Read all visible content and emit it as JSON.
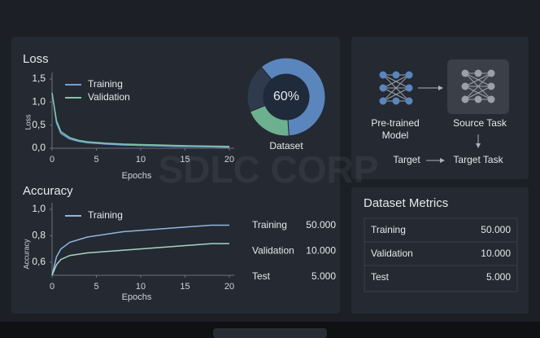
{
  "chart_data": [
    {
      "type": "line",
      "title": "Loss",
      "y_label": "Loss",
      "x_label": "Epochs",
      "x": [
        0,
        0.5,
        1,
        2,
        3,
        4,
        6,
        8,
        10,
        12,
        14,
        16,
        18,
        20
      ],
      "xlim": [
        0,
        20
      ],
      "xticks": [
        0,
        5,
        10,
        15,
        20
      ],
      "ylim": [
        0,
        1.5
      ],
      "yticks": [
        {
          "value": 1.5,
          "label": "1,5"
        },
        {
          "value": 1.0,
          "label": "1,0"
        },
        {
          "value": 0.5,
          "label": "0,5"
        },
        {
          "value": 0,
          "label": "0,0"
        }
      ],
      "series": [
        {
          "name": "Training",
          "color": "#6f9fd8",
          "values": [
            1.2,
            0.55,
            0.32,
            0.2,
            0.15,
            0.12,
            0.09,
            0.07,
            0.06,
            0.05,
            0.04,
            0.035,
            0.03,
            0.02
          ]
        },
        {
          "name": "Validation",
          "color": "#7fc4a8",
          "values": [
            1.2,
            0.6,
            0.36,
            0.23,
            0.17,
            0.14,
            0.11,
            0.09,
            0.08,
            0.07,
            0.06,
            0.05,
            0.045,
            0.04
          ]
        }
      ]
    },
    {
      "type": "line",
      "title": "Accuracy",
      "y_label": "Accuracy",
      "x_label": "Epochs",
      "x": [
        0,
        0.5,
        1,
        2,
        3,
        4,
        6,
        8,
        10,
        12,
        14,
        16,
        18,
        20
      ],
      "xlim": [
        0,
        20
      ],
      "xticks": [
        0,
        5,
        10,
        15,
        20
      ],
      "ylim": [
        0.5,
        1.0
      ],
      "yticks": [
        {
          "value": 1.0,
          "label": "1,0"
        },
        {
          "value": 0.8,
          "label": "0,8"
        },
        {
          "value": 0.6,
          "label": "0,6"
        }
      ],
      "series": [
        {
          "name": "Training",
          "color": "#8fb6e0",
          "values": [
            0.5,
            0.64,
            0.7,
            0.75,
            0.77,
            0.79,
            0.81,
            0.83,
            0.84,
            0.85,
            0.86,
            0.87,
            0.88,
            0.88
          ]
        },
        {
          "color": "#a7d3c4",
          "values": [
            0.5,
            0.58,
            0.62,
            0.65,
            0.66,
            0.67,
            0.68,
            0.69,
            0.7,
            0.71,
            0.72,
            0.73,
            0.74,
            0.74
          ]
        }
      ]
    },
    {
      "type": "pie",
      "label": "Dataset",
      "values": [
        60,
        20,
        20
      ],
      "value_labels": [
        "60%",
        null,
        null
      ],
      "colors": [
        "#5b86bd",
        "#6db08f",
        "#2f3a4d"
      ]
    }
  ],
  "summary_table": {
    "rows": [
      [
        "Training",
        "50.000"
      ],
      [
        "Validation",
        "10.000"
      ],
      [
        "Test",
        "5.000"
      ]
    ]
  },
  "diagram": {
    "nodes": [
      {
        "label": [
          "Pre-trained",
          "Model"
        ]
      },
      {
        "label": [
          "Source Task"
        ]
      },
      {
        "label": [
          "Target"
        ]
      },
      {
        "label": [
          "Target Task"
        ]
      }
    ]
  },
  "metrics": {
    "title": "Dataset Metrics",
    "rows": [
      [
        "Training",
        "50.000"
      ],
      [
        "Validation",
        "10.000"
      ],
      [
        "Test",
        "5.000"
      ]
    ]
  },
  "watermark": "SDLC CORP"
}
